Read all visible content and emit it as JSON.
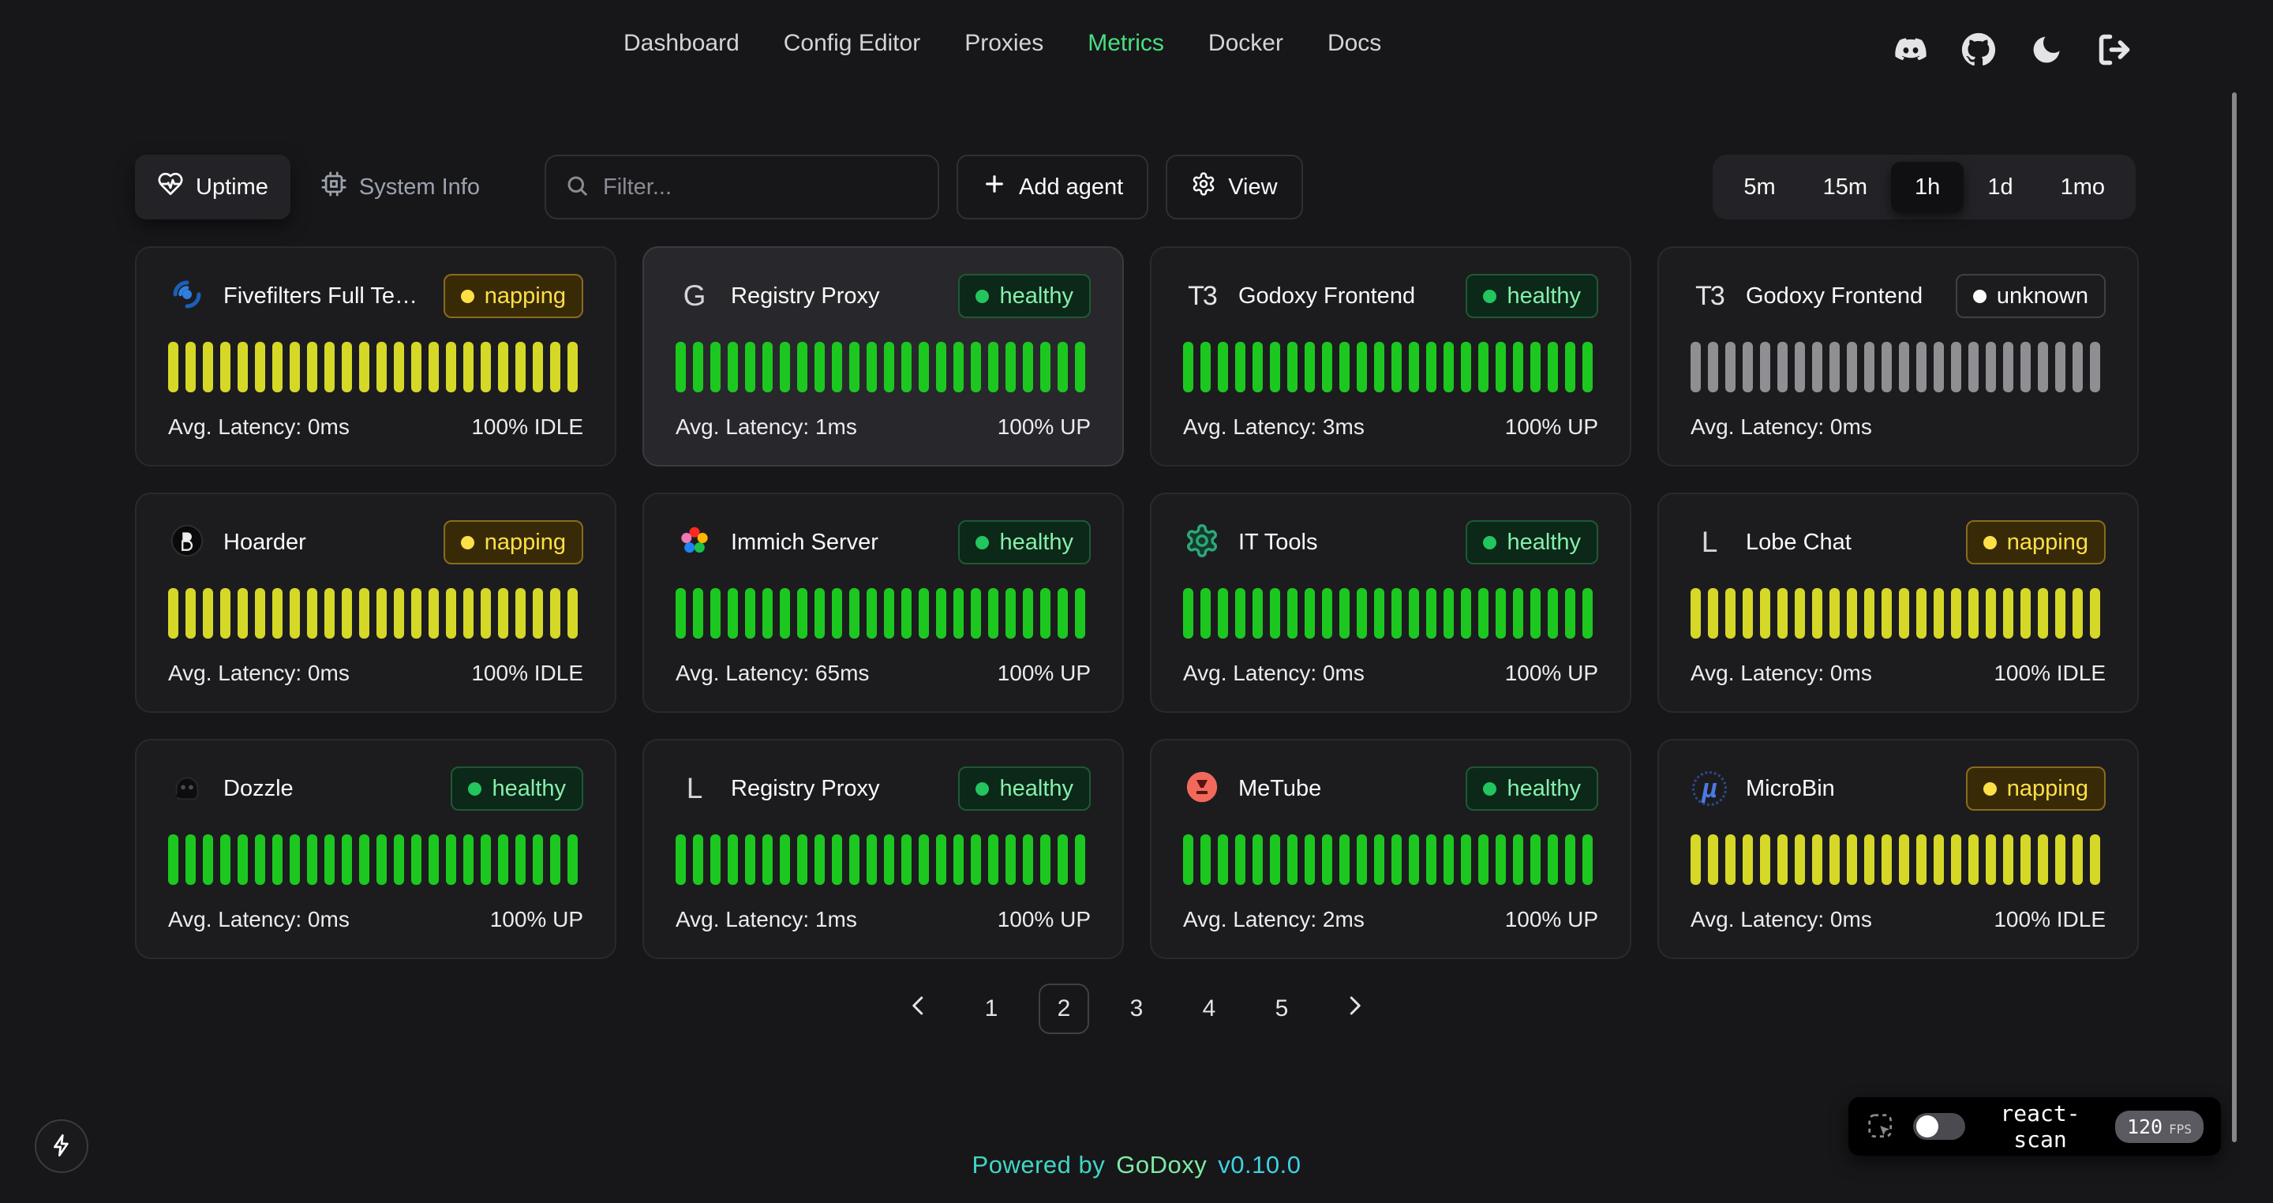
{
  "nav": {
    "items": [
      {
        "label": "Dashboard",
        "active": false
      },
      {
        "label": "Config Editor",
        "active": false
      },
      {
        "label": "Proxies",
        "active": false
      },
      {
        "label": "Metrics",
        "active": true
      },
      {
        "label": "Docker",
        "active": false
      },
      {
        "label": "Docs",
        "active": false
      }
    ],
    "active_color": "#4ade80"
  },
  "header_icons": [
    {
      "name": "discord-icon"
    },
    {
      "name": "github-icon"
    },
    {
      "name": "moon-icon"
    },
    {
      "name": "logout-icon"
    }
  ],
  "toolbar": {
    "tabs": [
      {
        "label": "Uptime",
        "icon": "heart-pulse-icon",
        "active": true
      },
      {
        "label": "System Info",
        "icon": "cpu-icon",
        "active": false
      }
    ],
    "filter_placeholder": "Filter...",
    "add_agent_label": "Add agent",
    "view_label": "View",
    "time_ranges": [
      {
        "label": "5m",
        "active": false
      },
      {
        "label": "15m",
        "active": false
      },
      {
        "label": "1h",
        "active": true
      },
      {
        "label": "1d",
        "active": false
      },
      {
        "label": "1mo",
        "active": false
      }
    ]
  },
  "labels": {
    "latency_prefix": "Avg. Latency: "
  },
  "status_styles": {
    "healthy": {
      "text": "#86efac",
      "dot": "#22c55e",
      "bg": "#0c2818",
      "border": "#1d5a34",
      "bar": "#1cc81f"
    },
    "napping": {
      "text": "#fde047",
      "dot": "#fde047",
      "bg": "#392a07",
      "border": "#8a6b1d",
      "bar": "#d6d827"
    },
    "unknown": {
      "text": "#fafafa",
      "dot": "#fafafa",
      "bg": "transparent",
      "border": "#3f3f46",
      "bar": "#8e8e93"
    }
  },
  "cards": [
    {
      "name": "Fivefilters Full Tex…",
      "icon": "fivefilters-icon",
      "status": "napping",
      "latency": "0ms",
      "uptime": "100% IDLE",
      "bars": 24,
      "highlighted": false
    },
    {
      "name": "Registry Proxy",
      "icon": "letter-g-icon",
      "status": "healthy",
      "latency": "1ms",
      "uptime": "100% UP",
      "bars": 24,
      "highlighted": true
    },
    {
      "name": "Godoxy Frontend",
      "icon": "t3-icon",
      "status": "healthy",
      "latency": "3ms",
      "uptime": "100% UP",
      "bars": 24,
      "highlighted": false
    },
    {
      "name": "Godoxy Frontend",
      "icon": "t3-icon",
      "status": "unknown",
      "latency": "0ms",
      "uptime": "",
      "bars": 24,
      "highlighted": false
    },
    {
      "name": "Hoarder",
      "icon": "hoarder-icon",
      "status": "napping",
      "latency": "0ms",
      "uptime": "100% IDLE",
      "bars": 24,
      "highlighted": false
    },
    {
      "name": "Immich Server",
      "icon": "immich-icon",
      "status": "healthy",
      "latency": "65ms",
      "uptime": "100% UP",
      "bars": 24,
      "highlighted": false
    },
    {
      "name": "IT Tools",
      "icon": "it-tools-icon",
      "status": "healthy",
      "latency": "0ms",
      "uptime": "100% UP",
      "bars": 24,
      "highlighted": false
    },
    {
      "name": "Lobe Chat",
      "icon": "letter-l-icon",
      "status": "napping",
      "latency": "0ms",
      "uptime": "100% IDLE",
      "bars": 24,
      "highlighted": false
    },
    {
      "name": "Dozzle",
      "icon": "dozzle-icon",
      "status": "healthy",
      "latency": "0ms",
      "uptime": "100% UP",
      "bars": 24,
      "highlighted": false
    },
    {
      "name": "Registry Proxy",
      "icon": "letter-l-icon",
      "status": "healthy",
      "latency": "1ms",
      "uptime": "100% UP",
      "bars": 24,
      "highlighted": false
    },
    {
      "name": "MeTube",
      "icon": "metube-icon",
      "status": "healthy",
      "latency": "2ms",
      "uptime": "100% UP",
      "bars": 24,
      "highlighted": false
    },
    {
      "name": "MicroBin",
      "icon": "microbin-icon",
      "status": "napping",
      "latency": "0ms",
      "uptime": "100% IDLE",
      "bars": 24,
      "highlighted": false
    }
  ],
  "pagination": {
    "pages": [
      "1",
      "2",
      "3",
      "4",
      "5"
    ],
    "active": "2"
  },
  "footer": {
    "powered_by": "Powered by",
    "brand": "GoDoxy",
    "version": "v0.10.0"
  },
  "react_scan": {
    "label": "react-scan",
    "fps": "120",
    "fps_unit": "FPS",
    "enabled": false
  }
}
